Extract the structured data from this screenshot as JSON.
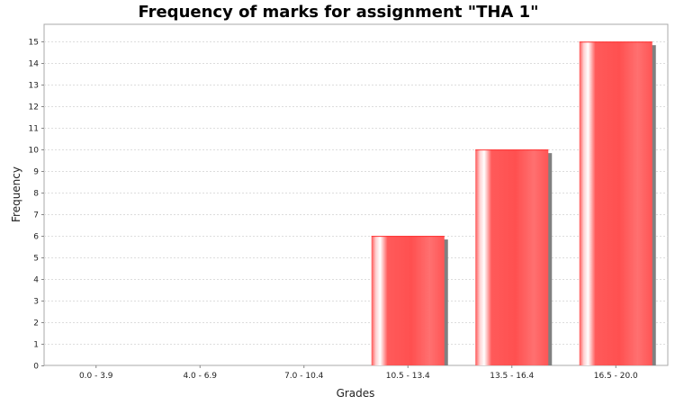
{
  "chart_data": {
    "type": "bar",
    "title": "Frequency of marks for assignment \"THA 1\"",
    "xlabel": "Grades",
    "ylabel": "Frequency",
    "categories": [
      "0.0 - 3.9",
      "4.0 - 6.9",
      "7.0 - 10.4",
      "10.5 - 13.4",
      "13.5 - 16.4",
      "16.5 - 20.0"
    ],
    "values": [
      0,
      0,
      0,
      6,
      10,
      15
    ],
    "ylim": [
      0,
      15.8
    ],
    "yticks": [
      0,
      1,
      2,
      3,
      4,
      5,
      6,
      7,
      8,
      9,
      10,
      11,
      12,
      13,
      14,
      15
    ],
    "grid": true,
    "bar_color": "#ff5555"
  }
}
